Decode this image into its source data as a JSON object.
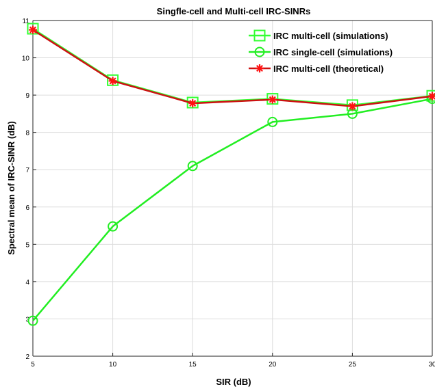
{
  "chart_data": {
    "type": "line",
    "title": "Singfle-cell and Multi-cell IRC-SINRs",
    "xlabel": "SIR (dB)",
    "ylabel": "Spectral mean of  IRC-SINR (dB)",
    "xlim": [
      5,
      30
    ],
    "ylim": [
      2,
      11
    ],
    "xticks": [
      5,
      10,
      15,
      20,
      25,
      30
    ],
    "yticks": [
      2,
      3,
      4,
      5,
      6,
      7,
      8,
      9,
      10,
      11
    ],
    "grid": true,
    "legend_position": "top-right",
    "x": [
      5,
      10,
      15,
      20,
      25,
      30
    ],
    "series": [
      {
        "name": "IRC multi-cell (simulations)",
        "values": [
          10.78,
          9.4,
          8.8,
          8.9,
          8.73,
          8.98
        ],
        "color": "#33ff33",
        "marker": "square"
      },
      {
        "name": "IRC single-cell (simulations)",
        "values": [
          2.95,
          5.48,
          7.1,
          8.28,
          8.5,
          8.9
        ],
        "color": "#22ee22",
        "marker": "circle"
      },
      {
        "name": "IRC multi-cell (theoretical)",
        "values": [
          10.75,
          9.38,
          8.78,
          8.88,
          8.7,
          8.97
        ],
        "color": "#cc1111",
        "marker_color": "#ff1111",
        "marker": "asterisk"
      }
    ]
  }
}
